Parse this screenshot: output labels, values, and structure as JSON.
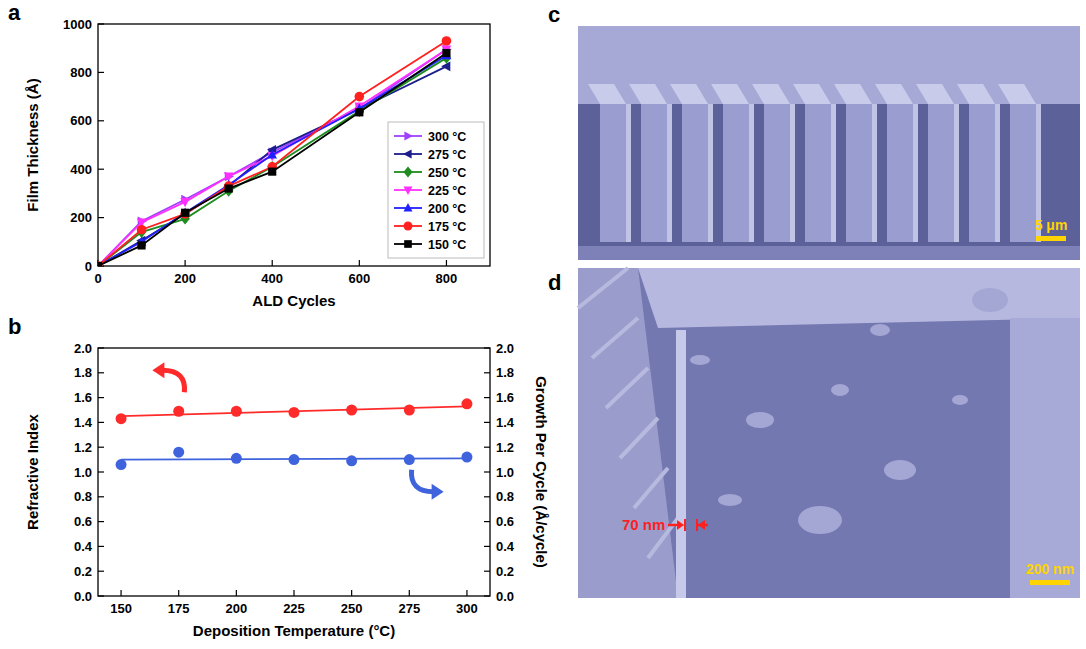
{
  "chart_data": [
    {
      "type": "line",
      "label": "a",
      "x_label": "ALD Cycles",
      "y_label": "Film Thickness (Å)",
      "x": [
        0,
        100,
        200,
        300,
        400,
        600,
        800
      ],
      "xlim": [
        0,
        900
      ],
      "xticks": [
        0,
        200,
        400,
        600,
        800
      ],
      "ylim": [
        0,
        1000
      ],
      "yticks": [
        0,
        200,
        400,
        600,
        800,
        1000
      ],
      "grid": false,
      "legend": "lower right",
      "series": [
        {
          "name": "300 °C",
          "color": "#a040ff",
          "marker": "triangle-right",
          "values": [
            0,
            185,
            275,
            370,
            470,
            650,
            895
          ]
        },
        {
          "name": "275 °C",
          "color": "#1c1c8c",
          "marker": "triangle-left",
          "values": [
            0,
            105,
            215,
            330,
            480,
            650,
            825
          ]
        },
        {
          "name": "250 °C",
          "color": "#1e8c1e",
          "marker": "diamond",
          "values": [
            0,
            140,
            195,
            310,
            410,
            640,
            860
          ]
        },
        {
          "name": "225 °C",
          "color": "#ff30ff",
          "marker": "triangle-down",
          "values": [
            0,
            180,
            265,
            370,
            455,
            660,
            895
          ]
        },
        {
          "name": "200 °C",
          "color": "#2020ff",
          "marker": "triangle-up",
          "values": [
            0,
            100,
            220,
            335,
            460,
            650,
            870
          ]
        },
        {
          "name": "175 °C",
          "color": "#ff2020",
          "marker": "circle",
          "values": [
            0,
            150,
            215,
            330,
            410,
            700,
            930
          ]
        },
        {
          "name": "150 °C",
          "color": "#000000",
          "marker": "square",
          "values": [
            0,
            85,
            220,
            320,
            390,
            635,
            880
          ]
        }
      ]
    },
    {
      "type": "scatter",
      "label": "b",
      "x_label": "Deposition Temperature (°C)",
      "y_label": "Refractive Index",
      "y2_label": "Growth Per Cycle (Å/cycle)",
      "x": [
        150,
        175,
        200,
        225,
        250,
        275,
        300
      ],
      "xlim": [
        140,
        310
      ],
      "xticks": [
        150,
        175,
        200,
        225,
        250,
        275,
        300
      ],
      "ylim": [
        0,
        2
      ],
      "yticks": [
        {
          "value": 0,
          "label": "0.0"
        },
        0.2,
        0.4,
        0.6,
        0.8,
        {
          "value": 1,
          "label": "1.0"
        },
        1.2,
        1.4,
        1.6,
        1.8,
        {
          "value": 2,
          "label": "2.0"
        }
      ],
      "y2lim": [
        0,
        2
      ],
      "y2ticks": [
        {
          "value": 0,
          "label": "0.0"
        },
        0.2,
        0.4,
        0.6,
        0.8,
        {
          "value": 1,
          "label": "1.0"
        },
        1.2,
        1.4,
        1.6,
        1.8,
        {
          "value": 2,
          "label": "2.0"
        }
      ],
      "grid": false,
      "series": [
        {
          "color": "#ff2a2a",
          "marker": "circle",
          "values": [
            1.43,
            1.49,
            1.49,
            1.48,
            1.5,
            1.5,
            1.55
          ]
        },
        {
          "color": "#3f63dd",
          "marker": "circle",
          "axis": "y2",
          "values": [
            1.06,
            1.16,
            1.11,
            1.1,
            1.09,
            1.1,
            1.12
          ]
        },
        {
          "type": "line",
          "color": "#ff2a2a",
          "x": [
            150,
            300
          ],
          "values": [
            1.45,
            1.53
          ]
        },
        {
          "type": "line",
          "color": "#3f63dd",
          "axis": "y2",
          "x": [
            150,
            300
          ],
          "values": [
            1.1,
            1.11
          ]
        }
      ]
    }
  ],
  "images": [
    {
      "label": "c",
      "scale_bar": "5 μm"
    },
    {
      "label": "d",
      "scale_bar": "200 nm",
      "annotation": "70 nm"
    }
  ]
}
